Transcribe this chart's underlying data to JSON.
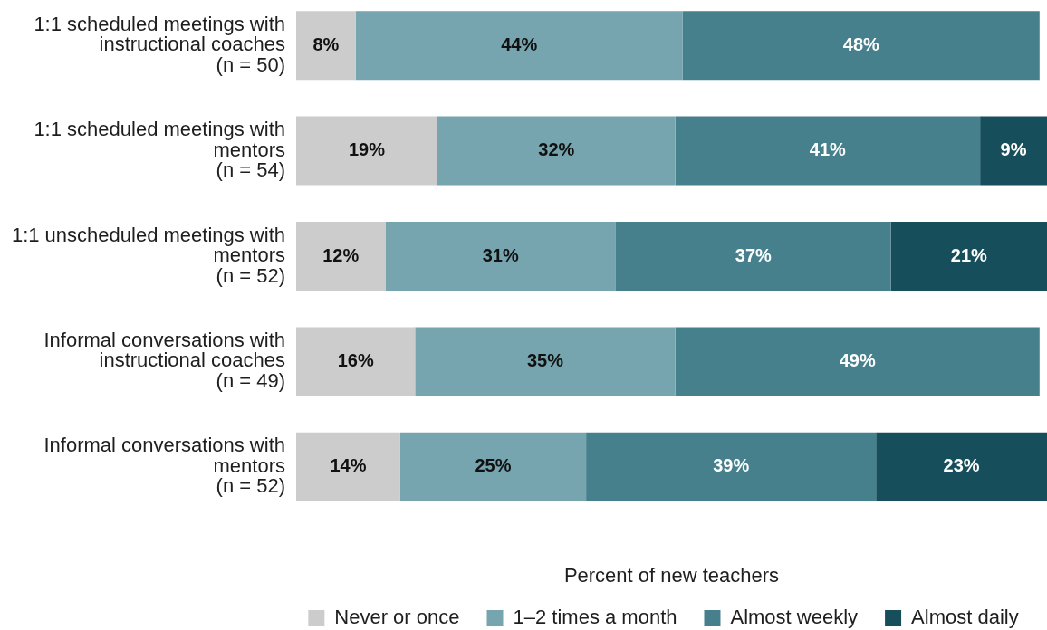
{
  "chart_data": {
    "type": "bar",
    "orientation": "horizontal",
    "stacked": true,
    "categories": [
      "1:1 scheduled meetings with\ninstructional coaches\n(n = 50)",
      "1:1 scheduled meetings with\nmentors\n(n = 54)",
      "1:1 unscheduled meetings with\nmentors\n(n = 52)",
      "Informal conversations with\ninstructional coaches\n(n = 49)",
      "Informal conversations with\nmentors\n(n = 52)"
    ],
    "xlabel": "Percent of new teachers",
    "xlim": [
      0,
      101
    ],
    "tick_labels": "y",
    "legend": "bottom",
    "series": [
      {
        "name": "Never or once",
        "color": "#cccccc",
        "values": [
          8,
          19,
          12,
          16,
          14
        ],
        "value_labels": [
          "8%",
          "19%",
          "12%",
          "16%",
          "14%"
        ]
      },
      {
        "name": "1–2 times a month",
        "color": "#76a4af",
        "values": [
          44,
          32,
          31,
          35,
          25
        ],
        "value_labels": [
          "44%",
          "32%",
          "31%",
          "35%",
          "25%"
        ]
      },
      {
        "name": "Almost weekly",
        "color": "#46808c",
        "values": [
          48,
          41,
          37,
          49,
          39
        ],
        "value_labels": [
          "48%",
          "41%",
          "37%",
          "49%",
          "39%"
        ]
      },
      {
        "name": "Almost daily",
        "color": "#164f5b",
        "values": [
          null,
          9,
          21,
          null,
          23
        ],
        "value_labels": [
          null,
          "9%",
          "21%",
          null,
          "23%"
        ]
      }
    ]
  }
}
